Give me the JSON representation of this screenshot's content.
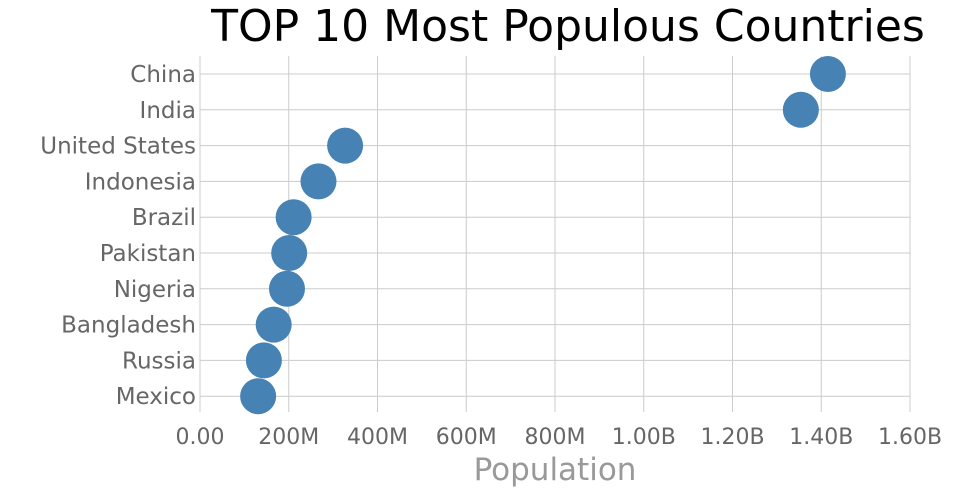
{
  "chart_data": {
    "type": "scatter",
    "title": "TOP 10 Most Populous Countries",
    "xlabel": "Population",
    "ylabel": "",
    "xlim": [
      0,
      1600000000
    ],
    "x_ticks": [
      {
        "value": 0,
        "label": "0.00"
      },
      {
        "value": 200000000,
        "label": "200M"
      },
      {
        "value": 400000000,
        "label": "400M"
      },
      {
        "value": 600000000,
        "label": "600M"
      },
      {
        "value": 800000000,
        "label": "800M"
      },
      {
        "value": 1000000000,
        "label": "1.00B"
      },
      {
        "value": 1200000000,
        "label": "1.20B"
      },
      {
        "value": 1400000000,
        "label": "1.40B"
      },
      {
        "value": 1600000000,
        "label": "1.60B"
      }
    ],
    "grid": true,
    "marker_color": "#4682b4",
    "points": [
      {
        "country": "China",
        "value": 1415000000
      },
      {
        "country": "India",
        "value": 1354000000
      },
      {
        "country": "United States",
        "value": 327000000
      },
      {
        "country": "Indonesia",
        "value": 267000000
      },
      {
        "country": "Brazil",
        "value": 211000000
      },
      {
        "country": "Pakistan",
        "value": 201000000
      },
      {
        "country": "Nigeria",
        "value": 196000000
      },
      {
        "country": "Bangladesh",
        "value": 166000000
      },
      {
        "country": "Russia",
        "value": 144000000
      },
      {
        "country": "Mexico",
        "value": 131000000
      }
    ]
  }
}
